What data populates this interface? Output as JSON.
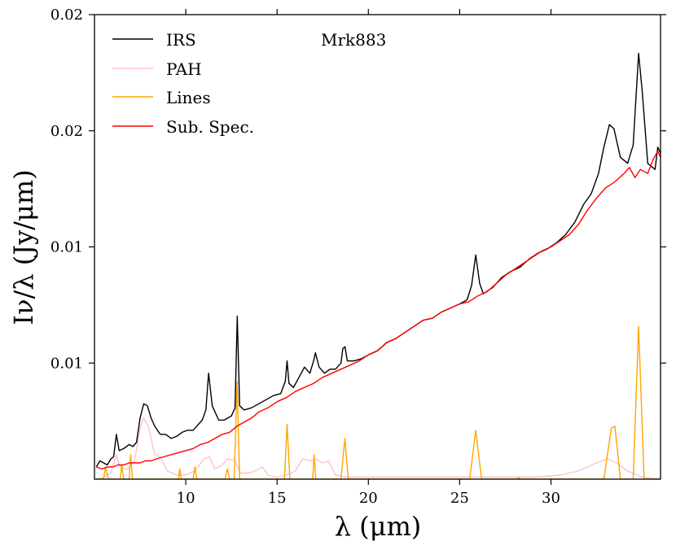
{
  "chart_data": {
    "type": "line",
    "title": "Mrk883",
    "xlabel": "λ (μm)",
    "ylabel": "Iν/λ (Jy/μm)",
    "xlim": [
      5.0,
      36.0
    ],
    "ylim": [
      0.0,
      0.0228
    ],
    "x_ticks": [
      10,
      15,
      20,
      25,
      30
    ],
    "x_tick_labels": [
      "10",
      "15",
      "20",
      "25",
      "30"
    ],
    "y_ticks": [
      0.0057,
      0.0114,
      0.0171,
      0.0228
    ],
    "y_tick_labels": [
      "0.01",
      "0.01",
      "0.02",
      "0.02"
    ],
    "legend_position": "top-left",
    "series": [
      {
        "name": "IRS",
        "color": "#000000",
        "points": [
          [
            5.1,
            0.0006
          ],
          [
            5.3,
            0.0009
          ],
          [
            5.5,
            0.0008
          ],
          [
            5.7,
            0.0007
          ],
          [
            5.9,
            0.001
          ],
          [
            6.05,
            0.0011
          ],
          [
            6.2,
            0.0022
          ],
          [
            6.35,
            0.0014
          ],
          [
            6.6,
            0.0015
          ],
          [
            6.9,
            0.0017
          ],
          [
            7.1,
            0.0016
          ],
          [
            7.3,
            0.0018
          ],
          [
            7.5,
            0.003
          ],
          [
            7.7,
            0.0037
          ],
          [
            7.9,
            0.0036
          ],
          [
            8.1,
            0.003
          ],
          [
            8.3,
            0.0026
          ],
          [
            8.6,
            0.0022
          ],
          [
            8.9,
            0.0022
          ],
          [
            9.2,
            0.002
          ],
          [
            9.5,
            0.0021
          ],
          [
            9.8,
            0.0023
          ],
          [
            10.1,
            0.0024
          ],
          [
            10.4,
            0.0024
          ],
          [
            10.6,
            0.0026
          ],
          [
            10.9,
            0.0029
          ],
          [
            11.1,
            0.0034
          ],
          [
            11.25,
            0.0052
          ],
          [
            11.45,
            0.0036
          ],
          [
            11.8,
            0.0029
          ],
          [
            12.1,
            0.0029
          ],
          [
            12.5,
            0.0031
          ],
          [
            12.7,
            0.0035
          ],
          [
            12.82,
            0.008
          ],
          [
            12.95,
            0.0036
          ],
          [
            13.2,
            0.0034
          ],
          [
            13.6,
            0.0035
          ],
          [
            14.0,
            0.0037
          ],
          [
            14.4,
            0.0039
          ],
          [
            14.8,
            0.0041
          ],
          [
            15.2,
            0.0042
          ],
          [
            15.45,
            0.0048
          ],
          [
            15.55,
            0.0058
          ],
          [
            15.65,
            0.0047
          ],
          [
            15.9,
            0.0045
          ],
          [
            16.2,
            0.005
          ],
          [
            16.5,
            0.0055
          ],
          [
            16.8,
            0.0052
          ],
          [
            17.0,
            0.0058
          ],
          [
            17.1,
            0.0062
          ],
          [
            17.3,
            0.0055
          ],
          [
            17.6,
            0.0052
          ],
          [
            17.9,
            0.0054
          ],
          [
            18.2,
            0.0054
          ],
          [
            18.5,
            0.0057
          ],
          [
            18.6,
            0.0064
          ],
          [
            18.72,
            0.0065
          ],
          [
            18.85,
            0.0058
          ],
          [
            19.2,
            0.0058
          ],
          [
            19.6,
            0.0059
          ],
          [
            20.0,
            0.0061
          ],
          [
            20.5,
            0.0063
          ],
          [
            21.0,
            0.0067
          ],
          [
            21.5,
            0.0069
          ],
          [
            22.0,
            0.0072
          ],
          [
            22.5,
            0.0075
          ],
          [
            23.0,
            0.0078
          ],
          [
            23.5,
            0.0079
          ],
          [
            24.0,
            0.0082
          ],
          [
            24.5,
            0.0084
          ],
          [
            25.0,
            0.0086
          ],
          [
            25.4,
            0.0088
          ],
          [
            25.65,
            0.0095
          ],
          [
            25.88,
            0.011
          ],
          [
            26.1,
            0.0096
          ],
          [
            26.3,
            0.0091
          ],
          [
            26.8,
            0.0094
          ],
          [
            27.3,
            0.0099
          ],
          [
            27.8,
            0.0102
          ],
          [
            28.3,
            0.0104
          ],
          [
            28.8,
            0.0108
          ],
          [
            29.3,
            0.0111
          ],
          [
            29.8,
            0.0113
          ],
          [
            30.3,
            0.0116
          ],
          [
            30.8,
            0.012
          ],
          [
            31.3,
            0.0126
          ],
          [
            31.8,
            0.0135
          ],
          [
            32.2,
            0.014
          ],
          [
            32.6,
            0.015
          ],
          [
            32.9,
            0.0163
          ],
          [
            33.2,
            0.0174
          ],
          [
            33.45,
            0.0172
          ],
          [
            33.8,
            0.0158
          ],
          [
            34.2,
            0.0155
          ],
          [
            34.5,
            0.0164
          ],
          [
            34.8,
            0.0209
          ],
          [
            35.0,
            0.019
          ],
          [
            35.3,
            0.0155
          ],
          [
            35.7,
            0.0152
          ],
          [
            35.85,
            0.0163
          ],
          [
            36.0,
            0.016
          ]
        ]
      },
      {
        "name": "PAH",
        "color": "#FFC0CB",
        "points": [
          [
            5.1,
            0.0
          ],
          [
            5.5,
            0.0001
          ],
          [
            5.9,
            0.0003
          ],
          [
            6.2,
            0.0012
          ],
          [
            6.4,
            0.0006
          ],
          [
            6.8,
            0.0005
          ],
          [
            7.2,
            0.0009
          ],
          [
            7.5,
            0.0025
          ],
          [
            7.7,
            0.003
          ],
          [
            7.95,
            0.0026
          ],
          [
            8.3,
            0.0012
          ],
          [
            8.6,
            0.0011
          ],
          [
            9.0,
            0.0004
          ],
          [
            9.5,
            0.0002
          ],
          [
            10.0,
            0.0002
          ],
          [
            10.5,
            0.0004
          ],
          [
            11.0,
            0.001
          ],
          [
            11.3,
            0.0011
          ],
          [
            11.6,
            0.0005
          ],
          [
            12.0,
            0.0007
          ],
          [
            12.3,
            0.001
          ],
          [
            12.7,
            0.0009
          ],
          [
            13.0,
            0.0003
          ],
          [
            13.5,
            0.0003
          ],
          [
            14.0,
            0.0005
          ],
          [
            14.2,
            0.0006
          ],
          [
            14.5,
            0.0002
          ],
          [
            15.0,
            0.0001
          ],
          [
            15.5,
            0.0002
          ],
          [
            16.0,
            0.0004
          ],
          [
            16.4,
            0.001
          ],
          [
            16.8,
            0.0009
          ],
          [
            17.1,
            0.001
          ],
          [
            17.5,
            0.0008
          ],
          [
            17.8,
            0.0009
          ],
          [
            18.2,
            0.0002
          ],
          [
            18.8,
            0.0001
          ],
          [
            20.0,
            0.0001
          ],
          [
            25.0,
            0.0001
          ],
          [
            29.0,
            0.0001
          ],
          [
            30.5,
            0.0002
          ],
          [
            31.5,
            0.0004
          ],
          [
            32.5,
            0.0008
          ],
          [
            33.1,
            0.001
          ],
          [
            33.6,
            0.0008
          ],
          [
            34.2,
            0.0004
          ],
          [
            35.0,
            0.0001
          ],
          [
            36.0,
            0.0
          ]
        ]
      },
      {
        "name": "Lines",
        "color": "#FFA500",
        "points": [
          [
            5.1,
            0.0
          ],
          [
            5.5,
            0.0
          ],
          [
            5.6,
            0.0006
          ],
          [
            5.75,
            0.0
          ],
          [
            6.4,
            0.0
          ],
          [
            6.5,
            0.0007
          ],
          [
            6.6,
            0.0
          ],
          [
            6.9,
            0.0
          ],
          [
            6.98,
            0.0012
          ],
          [
            7.08,
            0.0
          ],
          [
            9.6,
            0.0
          ],
          [
            9.67,
            0.0005
          ],
          [
            9.75,
            0.0
          ],
          [
            10.4,
            0.0
          ],
          [
            10.5,
            0.0006
          ],
          [
            10.6,
            0.0
          ],
          [
            12.15,
            0.0
          ],
          [
            12.27,
            0.0005
          ],
          [
            12.4,
            0.0
          ],
          [
            12.65,
            0.0
          ],
          [
            12.81,
            0.0048
          ],
          [
            12.95,
            0.0
          ],
          [
            15.4,
            0.0
          ],
          [
            15.55,
            0.0027
          ],
          [
            15.7,
            0.0
          ],
          [
            16.95,
            0.0
          ],
          [
            17.03,
            0.0012
          ],
          [
            17.12,
            0.0
          ],
          [
            18.5,
            0.0
          ],
          [
            18.71,
            0.002
          ],
          [
            18.9,
            0.0
          ],
          [
            25.55,
            0.0
          ],
          [
            25.88,
            0.0024
          ],
          [
            26.2,
            0.0
          ],
          [
            28.15,
            0.0
          ],
          [
            28.22,
            0.0001
          ],
          [
            28.3,
            0.0
          ],
          [
            32.9,
            0.0
          ],
          [
            33.3,
            0.0025
          ],
          [
            33.5,
            0.0026
          ],
          [
            33.8,
            0.0
          ],
          [
            34.5,
            0.0
          ],
          [
            34.8,
            0.0075
          ],
          [
            35.1,
            0.0
          ],
          [
            36.0,
            0.0
          ]
        ]
      },
      {
        "name": "Sub. Spec.",
        "color": "#FF0000",
        "points": [
          [
            5.1,
            0.0006
          ],
          [
            5.4,
            0.0005
          ],
          [
            5.7,
            0.0006
          ],
          [
            6.0,
            0.0006
          ],
          [
            6.3,
            0.0007
          ],
          [
            6.6,
            0.0007
          ],
          [
            6.9,
            0.0008
          ],
          [
            7.2,
            0.0008
          ],
          [
            7.5,
            0.0008
          ],
          [
            7.8,
            0.0009
          ],
          [
            8.1,
            0.0009
          ],
          [
            8.4,
            0.001
          ],
          [
            8.8,
            0.0011
          ],
          [
            9.2,
            0.0012
          ],
          [
            9.6,
            0.0013
          ],
          [
            10.0,
            0.0014
          ],
          [
            10.4,
            0.0015
          ],
          [
            10.8,
            0.0017
          ],
          [
            11.2,
            0.0018
          ],
          [
            11.6,
            0.002
          ],
          [
            12.0,
            0.0022
          ],
          [
            12.4,
            0.0023
          ],
          [
            12.8,
            0.0026
          ],
          [
            13.2,
            0.0028
          ],
          [
            13.6,
            0.003
          ],
          [
            14.0,
            0.0033
          ],
          [
            14.5,
            0.0035
          ],
          [
            15.0,
            0.0038
          ],
          [
            15.5,
            0.004
          ],
          [
            16.0,
            0.0043
          ],
          [
            16.5,
            0.0045
          ],
          [
            17.0,
            0.0047
          ],
          [
            17.5,
            0.005
          ],
          [
            18.0,
            0.0052
          ],
          [
            18.5,
            0.0054
          ],
          [
            19.0,
            0.0056
          ],
          [
            19.5,
            0.0058
          ],
          [
            20.0,
            0.0061
          ],
          [
            20.5,
            0.0063
          ],
          [
            21.0,
            0.0067
          ],
          [
            21.5,
            0.0069
          ],
          [
            22.0,
            0.0072
          ],
          [
            22.5,
            0.0075
          ],
          [
            23.0,
            0.0078
          ],
          [
            23.5,
            0.0079
          ],
          [
            24.0,
            0.0082
          ],
          [
            24.5,
            0.0084
          ],
          [
            25.0,
            0.0086
          ],
          [
            25.5,
            0.0087
          ],
          [
            26.0,
            0.009
          ],
          [
            26.5,
            0.0092
          ],
          [
            27.0,
            0.0096
          ],
          [
            27.5,
            0.01
          ],
          [
            28.0,
            0.0103
          ],
          [
            28.5,
            0.0106
          ],
          [
            29.0,
            0.0109
          ],
          [
            29.5,
            0.0112
          ],
          [
            30.0,
            0.0114
          ],
          [
            30.5,
            0.0117
          ],
          [
            31.0,
            0.012
          ],
          [
            31.5,
            0.0125
          ],
          [
            32.0,
            0.0132
          ],
          [
            32.5,
            0.0138
          ],
          [
            33.0,
            0.0143
          ],
          [
            33.5,
            0.0146
          ],
          [
            34.0,
            0.015
          ],
          [
            34.3,
            0.0153
          ],
          [
            34.6,
            0.0148
          ],
          [
            34.9,
            0.0152
          ],
          [
            35.3,
            0.015
          ],
          [
            35.6,
            0.0157
          ],
          [
            35.85,
            0.0161
          ],
          [
            36.0,
            0.0158
          ]
        ]
      }
    ]
  }
}
